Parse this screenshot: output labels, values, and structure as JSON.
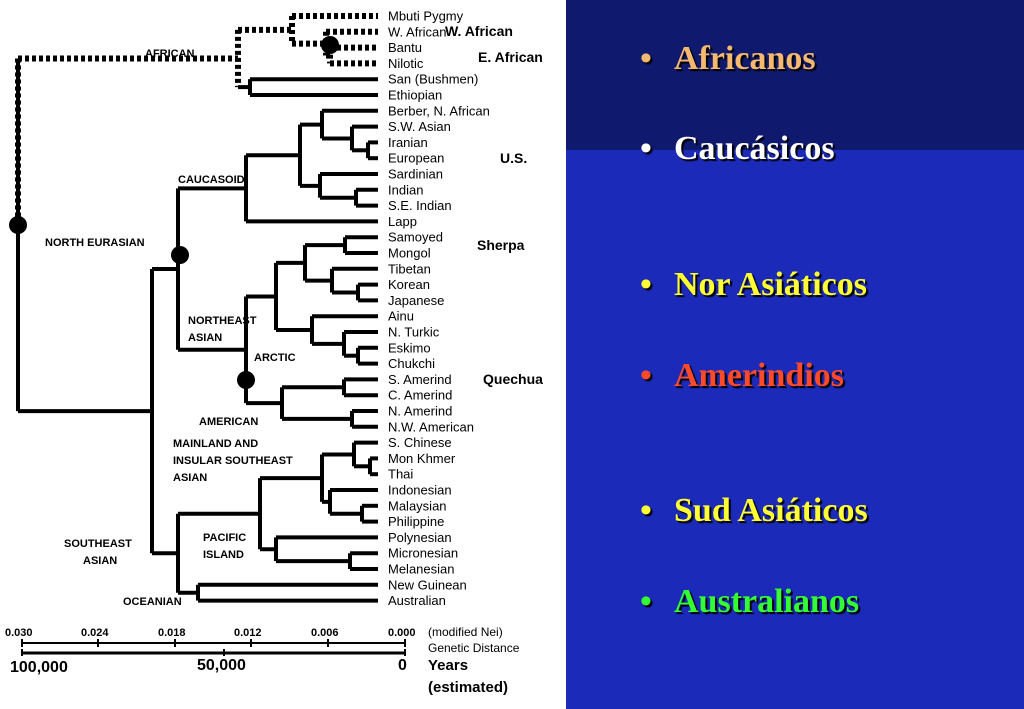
{
  "tree": {
    "leaves": [
      "Mbuti Pygmy",
      "W. African",
      "Bantu",
      "Nilotic",
      "San (Bushmen)",
      "Ethiopian",
      "Berber, N. African",
      "S.W. Asian",
      "Iranian",
      "European",
      "Sardinian",
      "Indian",
      "S.E. Indian",
      "Lapp",
      "Samoyed",
      "Mongol",
      "Tibetan",
      "Korean",
      "Japanese",
      "Ainu",
      "N. Turkic",
      "Eskimo",
      "Chukchi",
      "S. Amerind",
      "C. Amerind",
      "N. Amerind",
      "N.W. American",
      "S. Chinese",
      "Mon Khmer",
      "Thai",
      "Indonesian",
      "Malaysian",
      "Philippine",
      "Polynesian",
      "Micronesian",
      "Melanesian",
      "New Guinean",
      "Australian"
    ],
    "populations": [
      "W. African",
      "E. African",
      "U.S.",
      "Sherpa",
      "Quechua"
    ],
    "groups": {
      "african": "AFRICAN",
      "caucasoid": "CAUCASOID",
      "north_eurasian": "NORTH EURASIAN",
      "northeast_asian": [
        "NORTHEAST",
        "ASIAN"
      ],
      "arctic": "ARCTIC",
      "american": "AMERICAN",
      "mainland": [
        "MAINLAND AND",
        "INSULAR SOUTHEAST",
        "ASIAN"
      ],
      "southeast_asian": [
        "SOUTHEAST",
        "ASIAN"
      ],
      "pacific": [
        "PACIFIC",
        "ISLAND"
      ],
      "oceanian": "OCEANIAN"
    },
    "axis": {
      "distance_ticks": [
        "0.030",
        "0.024",
        "0.018",
        "0.012",
        "0.006",
        "0.000"
      ],
      "distance_note": "(modified Nei)",
      "distance_label": "Genetic Distance",
      "year_ticks": [
        "100,000",
        "50,000",
        "0"
      ],
      "year_label_1": "Years",
      "year_label_2": "(estimated)"
    }
  },
  "slide": {
    "bullet_char": "•",
    "bullets": [
      {
        "text": "Africanos",
        "color": "#f5b870"
      },
      {
        "text": "Caucásicos",
        "color": "#ffffff"
      },
      {
        "text": "Nor Asiáticos",
        "color": "#ffff33"
      },
      {
        "text": "Amerindios",
        "color": "#ff4a2a"
      },
      {
        "text": "Sud Asiáticos",
        "color": "#ffff33"
      },
      {
        "text": "Australianos",
        "color": "#33ff33"
      }
    ]
  }
}
